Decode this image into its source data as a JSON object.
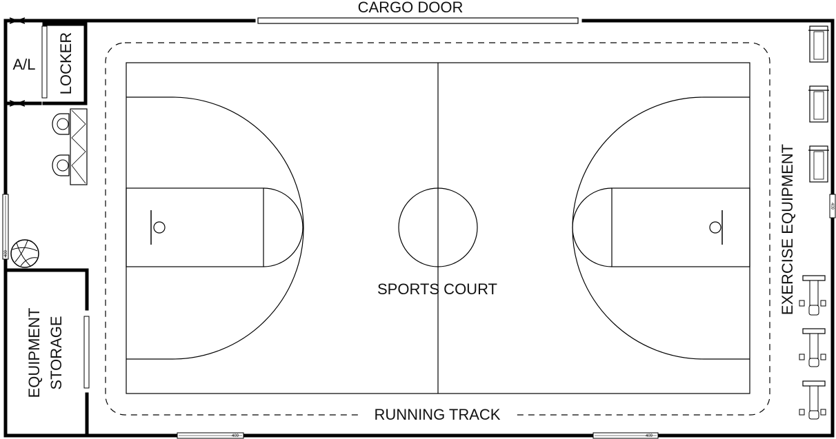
{
  "colors": {
    "line": "#000000",
    "background": "#ffffff",
    "text": "#111111"
  },
  "labels": {
    "cargo_door": "CARGO DOOR",
    "airlock": "A/L",
    "locker": "LOCKER",
    "equipment_storage_line1": "EQUIPMENT",
    "equipment_storage_line2": "STORAGE",
    "sports_court": "SPORTS COURT",
    "running_track": "RUNNING TRACK",
    "exercise_equipment": "EXERCISE EQUIPMENT"
  },
  "window_tags": {
    "left_wall": "409",
    "right_wall": "409",
    "bottom_left": "409",
    "bottom_right": "409"
  },
  "icons": {
    "chairs": "armchair-icon",
    "sofa": "sofa-icon",
    "ball": "ball-icon",
    "treadmills": "treadmill-icon",
    "weight_machines": "weight-machine-icon"
  }
}
